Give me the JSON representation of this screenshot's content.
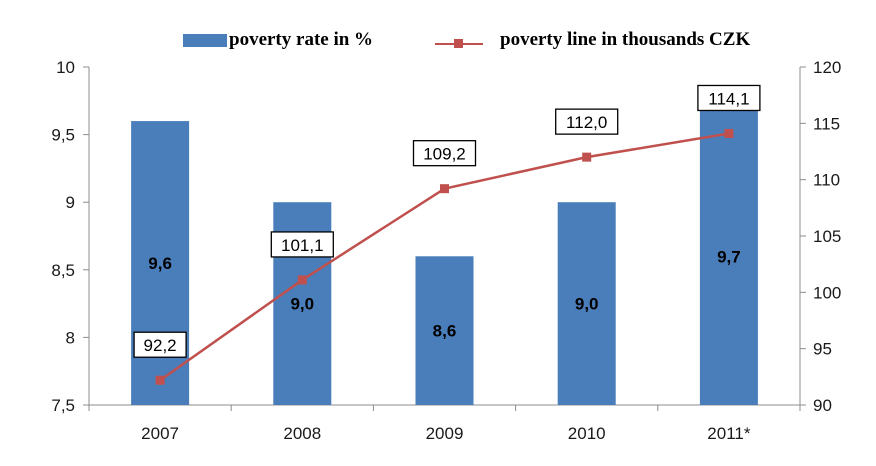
{
  "chart_data": {
    "type": "bar",
    "categories": [
      "2007",
      "2008",
      "2009",
      "2010",
      "2011*"
    ],
    "series": [
      {
        "name": "poverty rate in %",
        "type": "bar",
        "axis": "left",
        "values": [
          9.6,
          9.0,
          8.6,
          9.0,
          9.7
        ],
        "labels": [
          "9,6",
          "9,0",
          "8,6",
          "9,0",
          "9,7"
        ],
        "color": "#4a7ebb"
      },
      {
        "name": "poverty line in thousands CZK",
        "type": "line",
        "axis": "right",
        "values": [
          92.2,
          101.1,
          109.2,
          112.0,
          114.1
        ],
        "labels": [
          "92,2",
          "101,1",
          "109,2",
          "112,0",
          "114,1"
        ],
        "color": "#c0504d"
      }
    ],
    "y_left": {
      "ylim": [
        7.5,
        10
      ],
      "ticks": [
        "10",
        "9,5",
        "9",
        "8,5",
        "8",
        "7,5"
      ]
    },
    "y_right": {
      "ylim": [
        90,
        120
      ],
      "ticks": [
        "120",
        "115",
        "110",
        "105",
        "100",
        "95",
        "90"
      ]
    },
    "grid": false,
    "legend_position": "top"
  }
}
